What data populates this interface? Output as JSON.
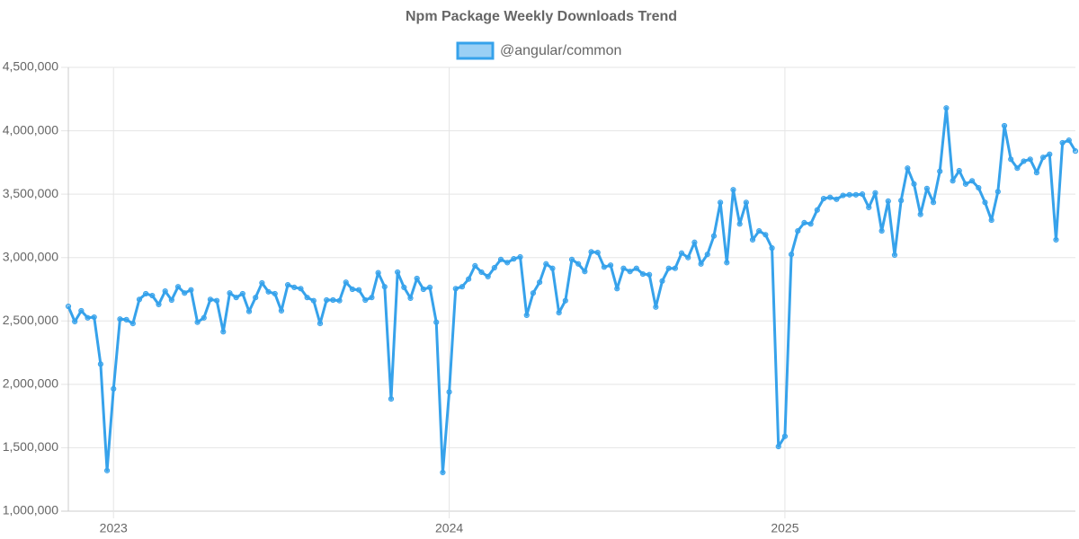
{
  "chart_data": {
    "type": "line",
    "title": "Npm Package Weekly Downloads Trend",
    "categories": [
      null,
      null,
      null,
      null,
      null,
      null,
      null,
      "2023",
      null,
      null,
      null,
      null,
      null,
      null,
      null,
      null,
      null,
      null,
      null,
      null,
      null,
      null,
      null,
      null,
      null,
      null,
      null,
      null,
      null,
      null,
      null,
      null,
      null,
      null,
      null,
      null,
      null,
      null,
      null,
      null,
      null,
      null,
      null,
      null,
      null,
      null,
      null,
      null,
      null,
      null,
      null,
      null,
      null,
      null,
      null,
      null,
      null,
      null,
      null,
      "2024",
      null,
      null,
      null,
      null,
      null,
      null,
      null,
      null,
      null,
      null,
      null,
      null,
      null,
      null,
      null,
      null,
      null,
      null,
      null,
      null,
      null,
      null,
      null,
      null,
      null,
      null,
      null,
      null,
      null,
      null,
      null,
      null,
      null,
      null,
      null,
      null,
      null,
      null,
      null,
      null,
      null,
      null,
      null,
      null,
      null,
      null,
      null,
      null,
      null,
      null,
      null,
      "2025",
      null,
      null,
      null,
      null,
      null,
      null,
      null,
      null,
      null,
      null,
      null,
      null,
      null,
      null,
      null,
      null,
      null,
      null,
      null,
      null,
      null,
      null,
      null,
      null,
      null,
      null,
      null,
      null,
      null,
      null,
      null,
      null,
      null,
      null,
      null,
      null,
      null,
      null,
      null,
      null,
      null,
      null,
      null,
      null,
      null
    ],
    "series": [
      {
        "name": "@angular/common",
        "color": "#36a2eb",
        "fill": "rgba(54,162,235,0.5)",
        "values": [
          2615000,
          2495000,
          2580000,
          2525000,
          2530000,
          2160000,
          1320000,
          1965000,
          2515000,
          2510000,
          2480000,
          2670000,
          2715000,
          2700000,
          2630000,
          2735000,
          2665000,
          2770000,
          2720000,
          2745000,
          2490000,
          2525000,
          2670000,
          2660000,
          2415000,
          2720000,
          2685000,
          2715000,
          2575000,
          2685000,
          2800000,
          2730000,
          2715000,
          2580000,
          2785000,
          2765000,
          2755000,
          2685000,
          2660000,
          2480000,
          2665000,
          2665000,
          2660000,
          2805000,
          2750000,
          2745000,
          2665000,
          2685000,
          2880000,
          2770000,
          1885000,
          2885000,
          2765000,
          2680000,
          2835000,
          2750000,
          2765000,
          2490000,
          1305000,
          1940000,
          2755000,
          2770000,
          2830000,
          2935000,
          2885000,
          2850000,
          2920000,
          2985000,
          2960000,
          2990000,
          3005000,
          2545000,
          2720000,
          2805000,
          2950000,
          2915000,
          2565000,
          2660000,
          2985000,
          2950000,
          2890000,
          3045000,
          3040000,
          2925000,
          2940000,
          2755000,
          2915000,
          2890000,
          2915000,
          2870000,
          2865000,
          2610000,
          2815000,
          2915000,
          2915000,
          3035000,
          3000000,
          3120000,
          2950000,
          3025000,
          3170000,
          3435000,
          2960000,
          3535000,
          3265000,
          3435000,
          3140000,
          3210000,
          3180000,
          3075000,
          1510000,
          1590000,
          3025000,
          3210000,
          3275000,
          3265000,
          3375000,
          3465000,
          3475000,
          3460000,
          3490000,
          3495000,
          3495000,
          3500000,
          3395000,
          3510000,
          3210000,
          3445000,
          3020000,
          3450000,
          3705000,
          3580000,
          3340000,
          3545000,
          3435000,
          3680000,
          4180000,
          3605000,
          3685000,
          3580000,
          3605000,
          3550000,
          3435000,
          3295000,
          3520000,
          4040000,
          3775000,
          3705000,
          3760000,
          3775000,
          3670000,
          3790000,
          3815000,
          3140000,
          3905000,
          3925000,
          3840000
        ]
      }
    ],
    "ylim": [
      1000000,
      4500000
    ],
    "yticks": [
      {
        "value": 1000000,
        "label": "1,000,000"
      },
      {
        "value": 1500000,
        "label": "1,500,000"
      },
      {
        "value": 2000000,
        "label": "2,000,000"
      },
      {
        "value": 2500000,
        "label": "2,500,000"
      },
      {
        "value": 3000000,
        "label": "3,000,000"
      },
      {
        "value": 3500000,
        "label": "3,500,000"
      },
      {
        "value": 4000000,
        "label": "4,000,000"
      },
      {
        "value": 4500000,
        "label": "4,500,000"
      }
    ],
    "grid": true,
    "legend": "top"
  }
}
